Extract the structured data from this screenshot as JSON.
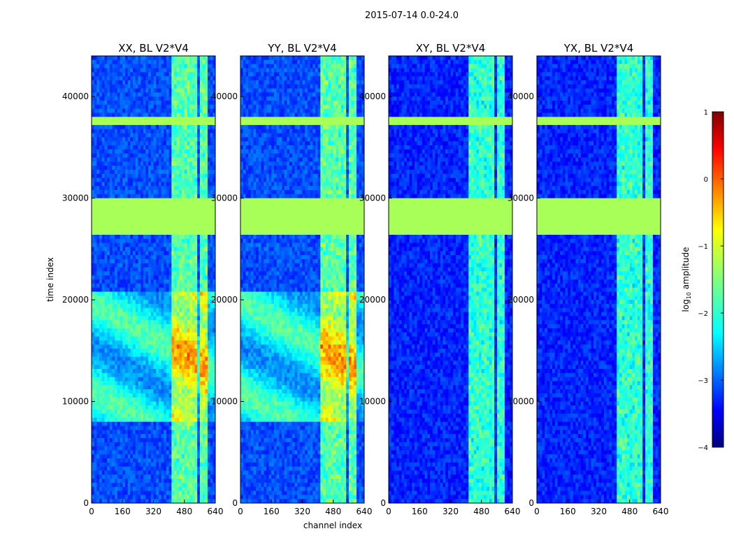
{
  "suptitle": "2015-07-14 0.0-24.0",
  "chart_data": {
    "type": "heatmap",
    "title": "2015-07-14 0.0-24.0",
    "xlabel": "channel index",
    "ylabel": "time index",
    "xlim": [
      0,
      640
    ],
    "ylim": [
      0,
      44000
    ],
    "xticks": [
      0,
      160,
      320,
      480,
      640
    ],
    "yticks": [
      0,
      10000,
      20000,
      30000,
      40000
    ],
    "panels": [
      {
        "title": "XX, BL V2*V4",
        "pol": "XX"
      },
      {
        "title": "YY, BL V2*V4",
        "pol": "YY"
      },
      {
        "title": "XY, BL V2*V4",
        "pol": "XY"
      },
      {
        "title": "YX, BL V2*V4",
        "pol": "YX"
      }
    ],
    "colorbar": {
      "label": "log10 amplitude",
      "label_base": "log",
      "label_sub": "10",
      "label_rest": " amplitude",
      "min": -4,
      "max": 1,
      "ticks": [
        -4,
        -3,
        -2,
        -1,
        0,
        1
      ],
      "tick_labels": [
        "−4",
        "−3",
        "−2",
        "−1",
        "0",
        "1"
      ],
      "colormap": "jet"
    },
    "flagged_time_ranges": [
      [
        37100,
        38100
      ],
      [
        26400,
        29800
      ]
    ],
    "flag_value": -1.3,
    "rfi_channel_ranges": [
      [
        420,
        450
      ],
      [
        460,
        500
      ],
      [
        510,
        540
      ],
      [
        555,
        600
      ]
    ]
  }
}
